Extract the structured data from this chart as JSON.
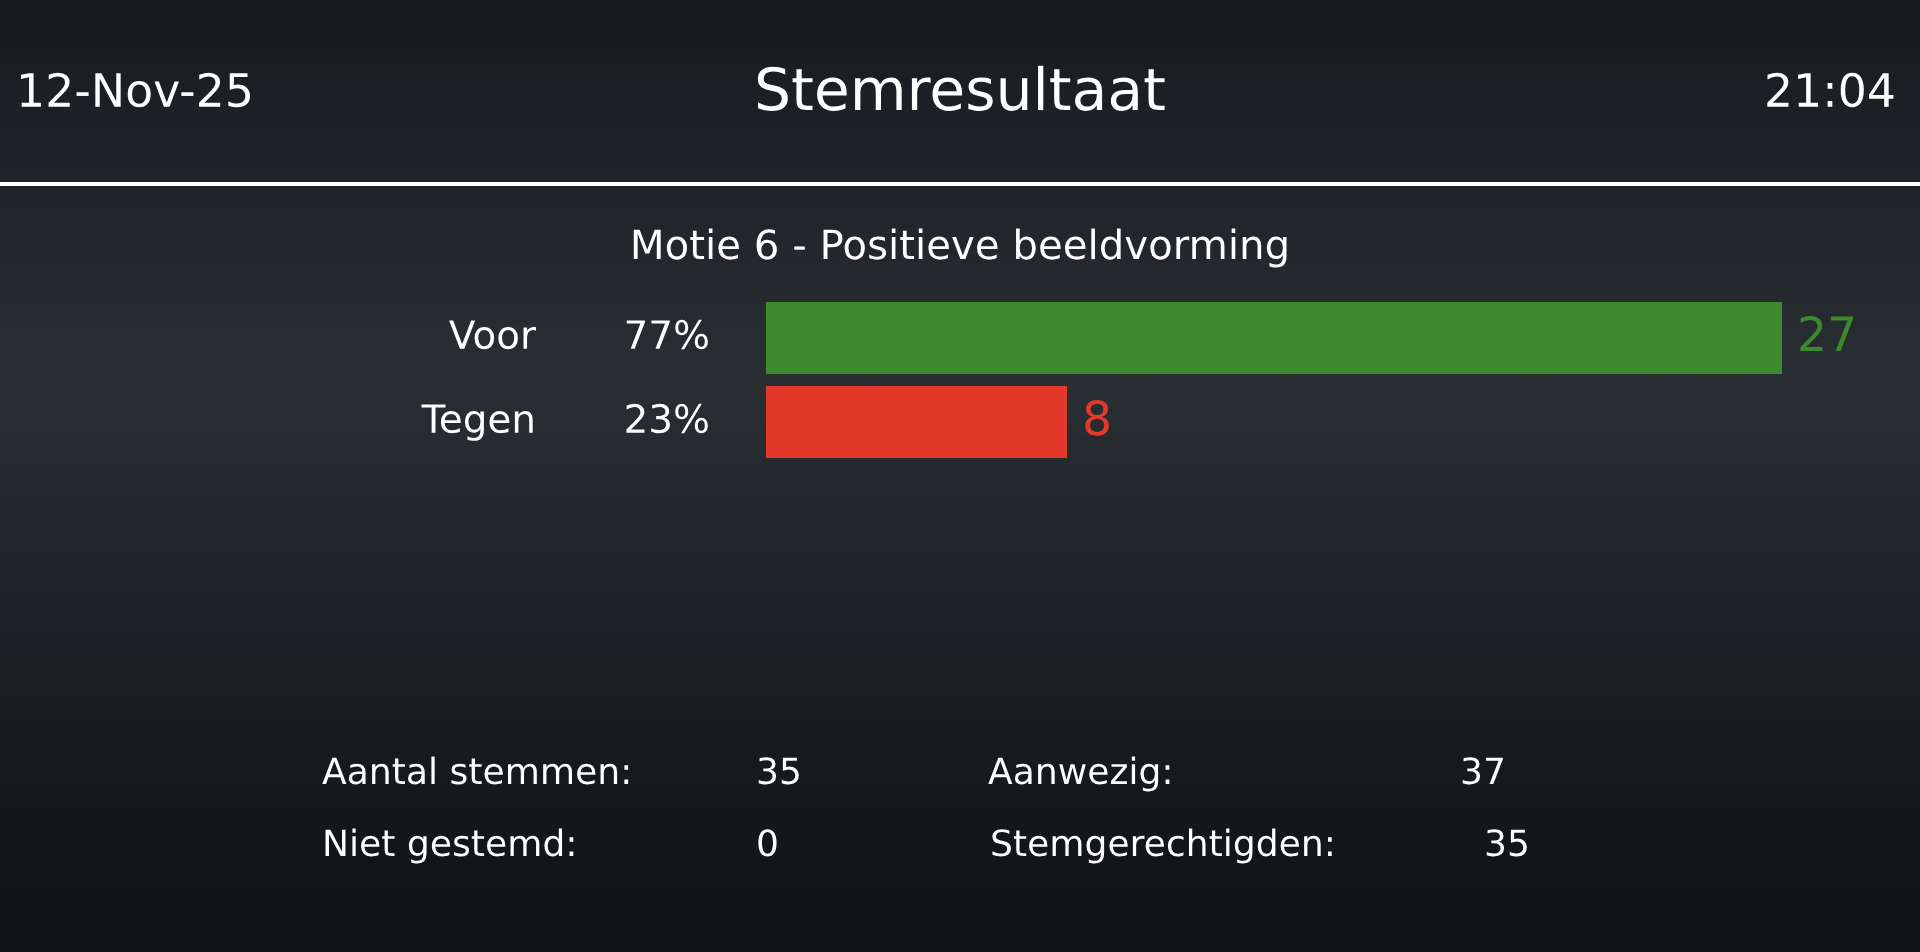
{
  "chart_data": {
    "type": "bar",
    "orientation": "horizontal",
    "title": "Stemresultaat",
    "subtitle": "Motie 6 - Positieve beeldvorming",
    "categories": [
      "Voor",
      "Tegen"
    ],
    "values": [
      27,
      8
    ],
    "colors": [
      "#3b8a2b",
      "#e2392a"
    ],
    "data_labels": true,
    "annotations": [
      "77%",
      "23%",
      "12-Nov-25",
      "21:04",
      "Aantal stemmen:",
      "35",
      "Aanwezig:",
      "37",
      "Niet gestemd:",
      "0",
      "Stemgerechtigden:",
      "35"
    ]
  }
}
